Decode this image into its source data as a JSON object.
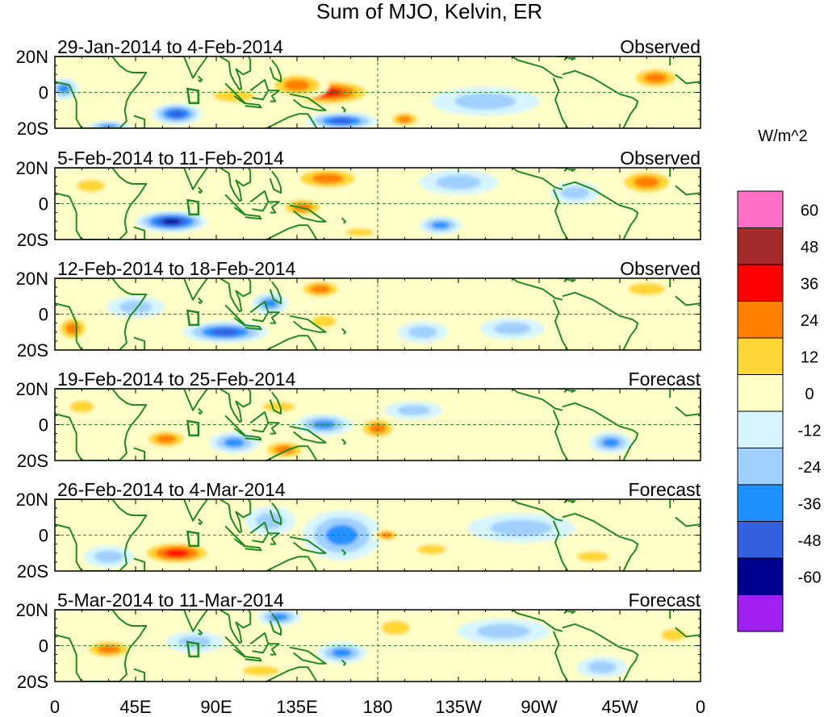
{
  "title": "Sum of MJO, Kelvin, ER",
  "colorbar": {
    "units": "W/m^2",
    "levels": [
      60,
      48,
      36,
      24,
      12,
      0,
      -12,
      -24,
      -36,
      -48,
      -60
    ],
    "colors": [
      "#ff6ec7",
      "#a52a2a",
      "#ff0000",
      "#ff7f00",
      "#ffd633",
      "#ffffc8",
      "#d6f5ff",
      "#a0d0ff",
      "#2090ff",
      "#3560e0",
      "#000090",
      "#a020f0"
    ]
  },
  "axes": {
    "x_ticks": [
      "0",
      "45E",
      "90E",
      "135E",
      "180",
      "135W",
      "90W",
      "45W",
      "0"
    ],
    "y_ticks": [
      "20N",
      "0",
      "20S"
    ]
  },
  "chart_data": {
    "type": "heatmap",
    "title": "Sum of MJO, Kelvin, ER",
    "units": "W/m^2",
    "xlim": [
      0,
      360
    ],
    "ylim": [
      -20,
      20
    ],
    "panels": [
      {
        "period": "29-Jan-2014 to 4-Feb-2014",
        "status": "Observed",
        "anomalies": [
          {
            "lon": 152,
            "lat": 0,
            "value": 36,
            "lon_radius": 28,
            "lat_radius": 8
          },
          {
            "lon": 135,
            "lat": 4,
            "value": 24,
            "lon_radius": 18,
            "lat_radius": 8
          },
          {
            "lon": 335,
            "lat": 8,
            "value": 30,
            "lon_radius": 16,
            "lat_radius": 7
          },
          {
            "lon": 195,
            "lat": -15,
            "value": 28,
            "lon_radius": 10,
            "lat_radius": 5
          },
          {
            "lon": 68,
            "lat": -12,
            "value": -36,
            "lon_radius": 14,
            "lat_radius": 6
          },
          {
            "lon": 160,
            "lat": -16,
            "value": -36,
            "lon_radius": 20,
            "lat_radius": 5
          },
          {
            "lon": 30,
            "lat": -19,
            "value": -24,
            "lon_radius": 12,
            "lat_radius": 3
          },
          {
            "lon": 5,
            "lat": 2,
            "value": -24,
            "lon_radius": 8,
            "lat_radius": 6
          },
          {
            "lon": 240,
            "lat": -5,
            "value": -12,
            "lon_radius": 30,
            "lat_radius": 8
          },
          {
            "lon": 100,
            "lat": -2,
            "value": 12,
            "lon_radius": 20,
            "lat_radius": 6
          }
        ]
      },
      {
        "period": "5-Feb-2014 to 11-Feb-2014",
        "status": "Observed",
        "anomalies": [
          {
            "lon": 152,
            "lat": 14,
            "value": 30,
            "lon_radius": 22,
            "lat_radius": 7
          },
          {
            "lon": 138,
            "lat": -2,
            "value": 24,
            "lon_radius": 14,
            "lat_radius": 6
          },
          {
            "lon": 330,
            "lat": 12,
            "value": 32,
            "lon_radius": 18,
            "lat_radius": 8
          },
          {
            "lon": 65,
            "lat": -10,
            "value": -50,
            "lon_radius": 20,
            "lat_radius": 6
          },
          {
            "lon": 215,
            "lat": -12,
            "value": -30,
            "lon_radius": 12,
            "lat_radius": 5
          },
          {
            "lon": 225,
            "lat": 12,
            "value": -12,
            "lon_radius": 22,
            "lat_radius": 7
          },
          {
            "lon": 20,
            "lat": 10,
            "value": 14,
            "lon_radius": 14,
            "lat_radius": 6
          },
          {
            "lon": 290,
            "lat": 6,
            "value": -14,
            "lon_radius": 14,
            "lat_radius": 6
          },
          {
            "lon": 170,
            "lat": -16,
            "value": 14,
            "lon_radius": 14,
            "lat_radius": 4
          }
        ]
      },
      {
        "period": "12-Feb-2014 to 18-Feb-2014",
        "status": "Observed",
        "anomalies": [
          {
            "lon": 148,
            "lat": 14,
            "value": 26,
            "lon_radius": 14,
            "lat_radius": 6
          },
          {
            "lon": 330,
            "lat": 14,
            "value": 20,
            "lon_radius": 18,
            "lat_radius": 6
          },
          {
            "lon": 10,
            "lat": -8,
            "value": 26,
            "lon_radius": 10,
            "lat_radius": 8
          },
          {
            "lon": 95,
            "lat": -10,
            "value": -36,
            "lon_radius": 24,
            "lat_radius": 6
          },
          {
            "lon": 120,
            "lat": 6,
            "value": -24,
            "lon_radius": 10,
            "lat_radius": 6
          },
          {
            "lon": 205,
            "lat": -10,
            "value": -16,
            "lon_radius": 14,
            "lat_radius": 6
          },
          {
            "lon": 150,
            "lat": -4,
            "value": 14,
            "lon_radius": 12,
            "lat_radius": 6
          },
          {
            "lon": 255,
            "lat": -8,
            "value": -12,
            "lon_radius": 18,
            "lat_radius": 6
          },
          {
            "lon": 45,
            "lat": 4,
            "value": -14,
            "lon_radius": 16,
            "lat_radius": 6
          }
        ]
      },
      {
        "period": "19-Feb-2014 to 25-Feb-2014",
        "status": "Forecast",
        "anomalies": [
          {
            "lon": 180,
            "lat": -2,
            "value": 30,
            "lon_radius": 12,
            "lat_radius": 7
          },
          {
            "lon": 128,
            "lat": -14,
            "value": 28,
            "lon_radius": 14,
            "lat_radius": 6
          },
          {
            "lon": 62,
            "lat": -8,
            "value": 24,
            "lon_radius": 14,
            "lat_radius": 6
          },
          {
            "lon": 100,
            "lat": -10,
            "value": -30,
            "lon_radius": 14,
            "lat_radius": 6
          },
          {
            "lon": 310,
            "lat": -10,
            "value": -32,
            "lon_radius": 12,
            "lat_radius": 6
          },
          {
            "lon": 150,
            "lat": 0,
            "value": -24,
            "lon_radius": 16,
            "lat_radius": 6
          },
          {
            "lon": 125,
            "lat": 10,
            "value": 14,
            "lon_radius": 16,
            "lat_radius": 5
          },
          {
            "lon": 15,
            "lat": 10,
            "value": 14,
            "lon_radius": 12,
            "lat_radius": 6
          },
          {
            "lon": 200,
            "lat": 8,
            "value": -12,
            "lon_radius": 16,
            "lat_radius": 5
          }
        ]
      },
      {
        "period": "26-Feb-2014 to 4-Mar-2014",
        "status": "Forecast",
        "anomalies": [
          {
            "lon": 68,
            "lat": -10,
            "value": 42,
            "lon_radius": 22,
            "lat_radius": 7
          },
          {
            "lon": 160,
            "lat": 0,
            "value": -30,
            "lon_radius": 22,
            "lat_radius": 14
          },
          {
            "lon": 185,
            "lat": 0,
            "value": 26,
            "lon_radius": 8,
            "lat_radius": 4
          },
          {
            "lon": 120,
            "lat": 8,
            "value": -14,
            "lon_radius": 14,
            "lat_radius": 8
          },
          {
            "lon": 30,
            "lat": -12,
            "value": -16,
            "lon_radius": 14,
            "lat_radius": 6
          },
          {
            "lon": 210,
            "lat": -8,
            "value": 14,
            "lon_radius": 14,
            "lat_radius": 5
          },
          {
            "lon": 260,
            "lat": 4,
            "value": -12,
            "lon_radius": 30,
            "lat_radius": 8
          },
          {
            "lon": 300,
            "lat": -12,
            "value": 12,
            "lon_radius": 16,
            "lat_radius": 5
          }
        ]
      },
      {
        "period": "5-Mar-2014 to 11-Mar-2014",
        "status": "Forecast",
        "anomalies": [
          {
            "lon": 30,
            "lat": -2,
            "value": 24,
            "lon_radius": 16,
            "lat_radius": 6
          },
          {
            "lon": 115,
            "lat": -14,
            "value": 22,
            "lon_radius": 18,
            "lat_radius": 5
          },
          {
            "lon": 190,
            "lat": 10,
            "value": 18,
            "lon_radius": 14,
            "lat_radius": 7
          },
          {
            "lon": 160,
            "lat": -4,
            "value": -30,
            "lon_radius": 14,
            "lat_radius": 6
          },
          {
            "lon": 125,
            "lat": 16,
            "value": -26,
            "lon_radius": 12,
            "lat_radius": 5
          },
          {
            "lon": 78,
            "lat": 2,
            "value": -16,
            "lon_radius": 16,
            "lat_radius": 6
          },
          {
            "lon": 305,
            "lat": -12,
            "value": -16,
            "lon_radius": 14,
            "lat_radius": 6
          },
          {
            "lon": 250,
            "lat": 8,
            "value": -12,
            "lon_radius": 26,
            "lat_radius": 7
          },
          {
            "lon": 345,
            "lat": 6,
            "value": 14,
            "lon_radius": 12,
            "lat_radius": 6
          }
        ]
      }
    ]
  }
}
